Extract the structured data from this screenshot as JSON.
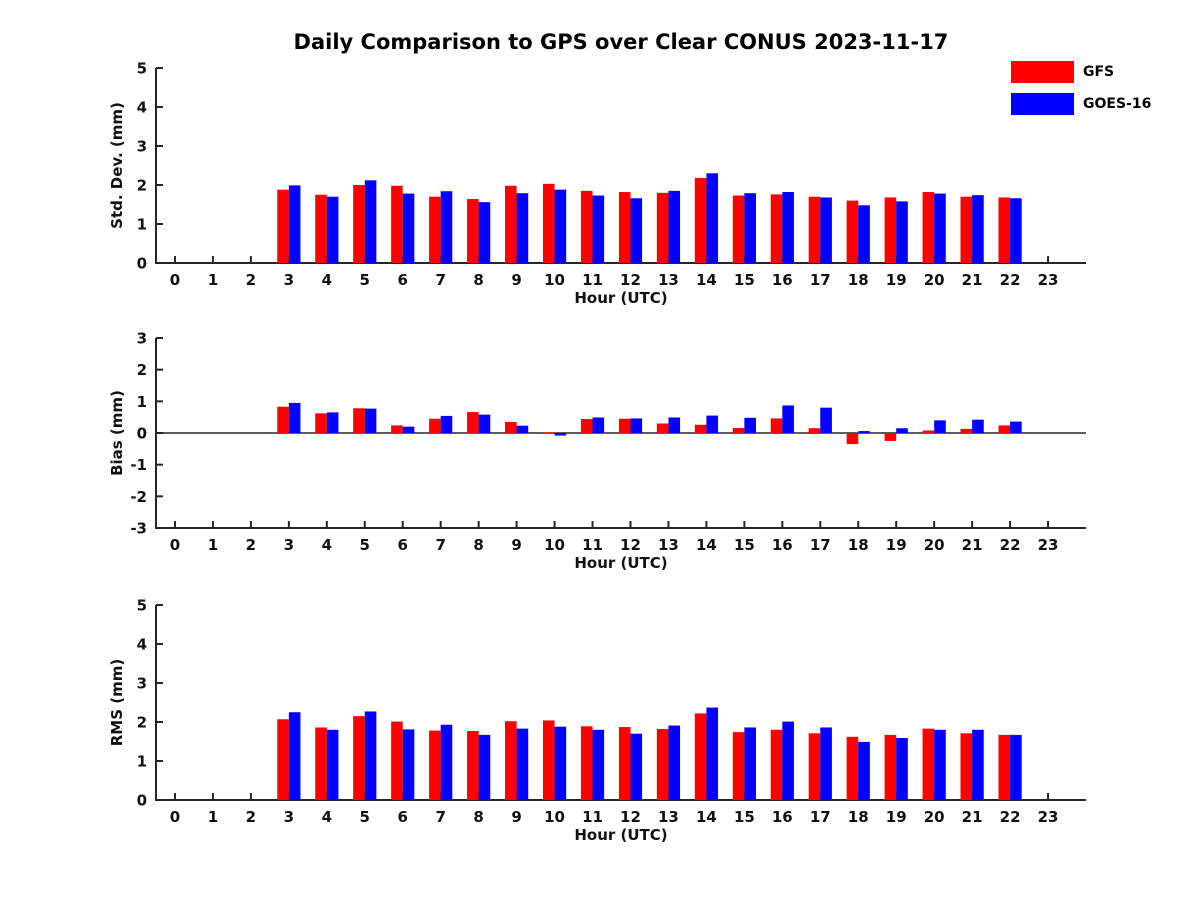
{
  "title": "Daily Comparison to GPS over Clear CONUS 2023-11-17",
  "legend": {
    "items": [
      {
        "label": "GFS",
        "color": "#ff0000"
      },
      {
        "label": "GOES-16",
        "color": "#0000ff"
      }
    ]
  },
  "chart_data": [
    {
      "type": "bar",
      "id": "stddev",
      "ylabel": "Std. Dev. (mm)",
      "xlabel": "Hour (UTC)",
      "ylim": [
        0,
        5
      ],
      "ytick_step": 1,
      "xlim": [
        -0.5,
        24
      ],
      "grid": false,
      "legend_position": "top-right-outside",
      "categories": [
        0,
        1,
        2,
        3,
        4,
        5,
        6,
        7,
        8,
        9,
        10,
        11,
        12,
        13,
        14,
        15,
        16,
        17,
        18,
        19,
        20,
        21,
        22,
        23
      ],
      "series": [
        {
          "name": "GFS",
          "color": "#ff0000",
          "values": [
            null,
            null,
            null,
            1.88,
            1.75,
            2.0,
            1.98,
            1.7,
            1.64,
            1.98,
            2.03,
            1.85,
            1.82,
            1.8,
            2.18,
            1.73,
            1.76,
            1.7,
            1.6,
            1.68,
            1.82,
            1.7,
            1.68,
            null
          ]
        },
        {
          "name": "GOES-16",
          "color": "#0000ff",
          "values": [
            null,
            null,
            null,
            1.99,
            1.7,
            2.12,
            1.78,
            1.84,
            1.56,
            1.79,
            1.88,
            1.73,
            1.66,
            1.85,
            2.3,
            1.79,
            1.82,
            1.68,
            1.48,
            1.58,
            1.78,
            1.74,
            1.66,
            null
          ]
        }
      ]
    },
    {
      "type": "bar",
      "id": "bias",
      "ylabel": "Bias (mm)",
      "xlabel": "Hour (UTC)",
      "ylim": [
        -3,
        3
      ],
      "ytick_step": 1,
      "xlim": [
        -0.5,
        24
      ],
      "grid": false,
      "zero_line": true,
      "categories": [
        0,
        1,
        2,
        3,
        4,
        5,
        6,
        7,
        8,
        9,
        10,
        11,
        12,
        13,
        14,
        15,
        16,
        17,
        18,
        19,
        20,
        21,
        22,
        23
      ],
      "series": [
        {
          "name": "GFS",
          "color": "#ff0000",
          "values": [
            null,
            null,
            null,
            0.83,
            0.62,
            0.78,
            0.24,
            0.45,
            0.66,
            0.35,
            0.02,
            0.44,
            0.45,
            0.3,
            0.26,
            0.16,
            0.46,
            0.15,
            -0.35,
            -0.25,
            0.08,
            0.13,
            0.24,
            null
          ]
        },
        {
          "name": "GOES-16",
          "color": "#0000ff",
          "values": [
            null,
            null,
            null,
            0.95,
            0.65,
            0.77,
            0.2,
            0.54,
            0.58,
            0.23,
            -0.08,
            0.49,
            0.46,
            0.49,
            0.55,
            0.48,
            0.87,
            0.8,
            0.06,
            0.15,
            0.4,
            0.42,
            0.36,
            null
          ]
        }
      ]
    },
    {
      "type": "bar",
      "id": "rms",
      "ylabel": "RMS (mm)",
      "xlabel": "Hour (UTC)",
      "ylim": [
        0,
        5
      ],
      "ytick_step": 1,
      "xlim": [
        -0.5,
        24
      ],
      "grid": false,
      "categories": [
        0,
        1,
        2,
        3,
        4,
        5,
        6,
        7,
        8,
        9,
        10,
        11,
        12,
        13,
        14,
        15,
        16,
        17,
        18,
        19,
        20,
        21,
        22,
        23
      ],
      "series": [
        {
          "name": "GFS",
          "color": "#ff0000",
          "values": [
            null,
            null,
            null,
            2.07,
            1.86,
            2.15,
            2.01,
            1.78,
            1.77,
            2.02,
            2.04,
            1.89,
            1.87,
            1.82,
            2.22,
            1.74,
            1.8,
            1.71,
            1.62,
            1.67,
            1.83,
            1.71,
            1.67,
            null
          ]
        },
        {
          "name": "GOES-16",
          "color": "#0000ff",
          "values": [
            null,
            null,
            null,
            2.25,
            1.8,
            2.27,
            1.81,
            1.93,
            1.67,
            1.83,
            1.88,
            1.8,
            1.7,
            1.91,
            2.37,
            1.86,
            2.01,
            1.86,
            1.49,
            1.59,
            1.8,
            1.8,
            1.67,
            null
          ]
        }
      ]
    }
  ]
}
